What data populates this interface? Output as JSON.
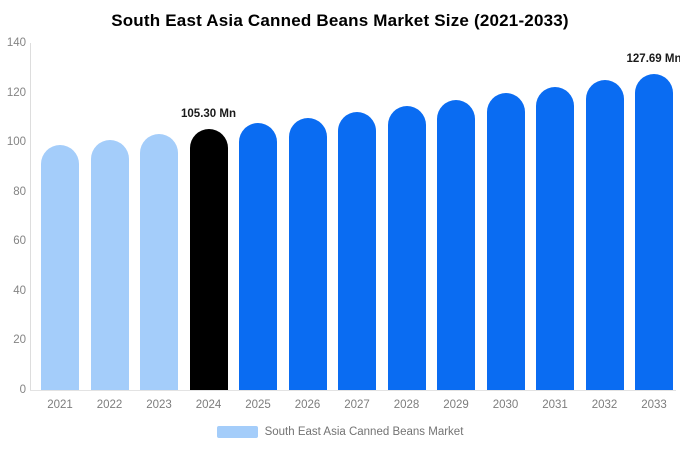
{
  "title": "South East Asia Canned Beans Market Size (2021-2033)",
  "legend": {
    "label": "South East Asia Canned Beans Market",
    "swatch_color": "#A4CDFA"
  },
  "colors": {
    "historical_bar": "#A4CDFA",
    "base_year_bar": "#000000",
    "forecast_bar": "#0A6CF2",
    "axis_line": "#DDDDDD",
    "tick_text": "#808080",
    "legend_text": "#737373",
    "title_text": "#000000",
    "annotation_text": "#1A1A1A"
  },
  "chart_data": {
    "type": "bar",
    "title": "South East Asia Canned Beans Market Size (2021-2033)",
    "unit": "Mn",
    "categories": [
      "2021",
      "2022",
      "2023",
      "2024",
      "2025",
      "2026",
      "2027",
      "2028",
      "2029",
      "2030",
      "2031",
      "2032",
      "2033"
    ],
    "series": [
      {
        "name": "South East Asia Canned Beans Market",
        "values": [
          98.7,
          100.9,
          103.1,
          105.3,
          107.6,
          109.9,
          112.3,
          114.7,
          117.2,
          119.8,
          122.3,
          125.0,
          127.69
        ]
      }
    ],
    "bar_colors": [
      "#A4CDFA",
      "#A4CDFA",
      "#A4CDFA",
      "#000000",
      "#0A6CF2",
      "#0A6CF2",
      "#0A6CF2",
      "#0A6CF2",
      "#0A6CF2",
      "#0A6CF2",
      "#0A6CF2",
      "#0A6CF2",
      "#0A6CF2"
    ],
    "annotations": [
      {
        "category": "2024",
        "label": "105.30 Mn"
      },
      {
        "category": "2033",
        "label": "127.69 Mn"
      }
    ],
    "yticks": [
      0,
      20,
      40,
      60,
      80,
      100,
      120,
      140
    ],
    "ylim": [
      0,
      140
    ],
    "grid": false,
    "legend_position": "bottom"
  }
}
